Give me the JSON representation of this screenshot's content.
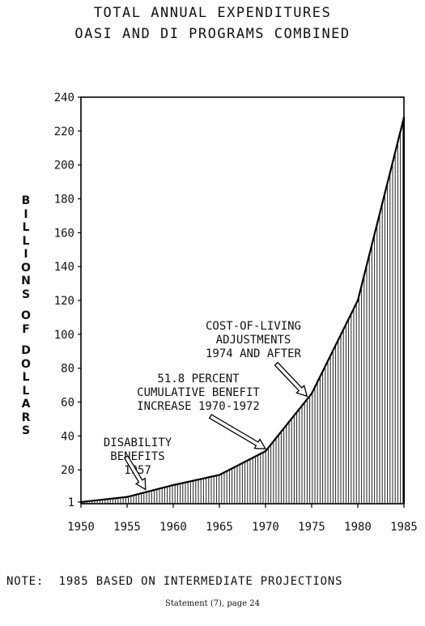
{
  "chart_data": {
    "type": "area",
    "title": "TOTAL ANNUAL EXPENDITURES",
    "subtitle": "OASI AND DI PROGRAMS COMBINED",
    "ylabel": "BILLIONS OF DOLLARS",
    "xlabel": "",
    "x_ticks": [
      "1950",
      "1955",
      "1960",
      "1965",
      "1970",
      "1975",
      "1980",
      "1985"
    ],
    "y_ticks": [
      "1",
      "20",
      "40",
      "60",
      "80",
      "100",
      "120",
      "140",
      "160",
      "180",
      "200",
      "220",
      "240"
    ],
    "xlim": [
      1950,
      1985
    ],
    "ylim": [
      0,
      240
    ],
    "grid": false,
    "series": [
      {
        "x": [
          1950,
          1955,
          1960,
          1965,
          1970,
          1975,
          1980,
          1985
        ],
        "y": [
          1,
          4,
          11,
          17,
          31,
          65,
          120,
          228
        ]
      }
    ],
    "annotations": [
      {
        "lines": [
          "DISABILITY",
          "BENEFITS",
          "1957"
        ],
        "x": 1957,
        "y": 7
      },
      {
        "lines": [
          "51.8 PERCENT",
          "CUMULATIVE BENEFIT",
          "INCREASE 1970-1972"
        ],
        "x": 1970,
        "y": 31
      },
      {
        "lines": [
          "COST-OF-LIVING",
          "ADJUSTMENTS",
          "1974 AND AFTER"
        ],
        "x": 1974.5,
        "y": 62
      }
    ]
  },
  "note": "NOTE:  1985 BASED ON INTERMEDIATE PROJECTIONS",
  "source": "Statement (7), page 24"
}
